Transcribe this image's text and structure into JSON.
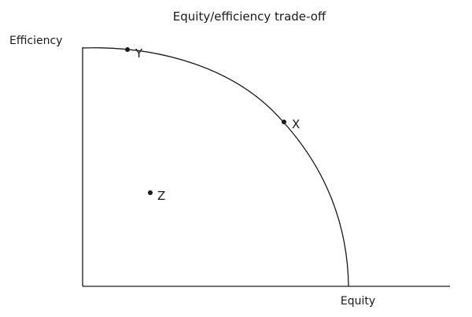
{
  "title": "Equity/efficiency trade-off",
  "axes": {
    "y_label": "Efficiency",
    "x_label": "Equity"
  },
  "curve": {
    "shape": "concave frontier",
    "color": "#1a1a1a"
  },
  "points": [
    {
      "label": "Y",
      "position": "on frontier, high efficiency, low equity"
    },
    {
      "label": "X",
      "position": "on frontier, balanced"
    },
    {
      "label": "Z",
      "position": "inside frontier"
    }
  ],
  "colors": {
    "ink": "#1a1a1a",
    "background": "#ffffff"
  }
}
